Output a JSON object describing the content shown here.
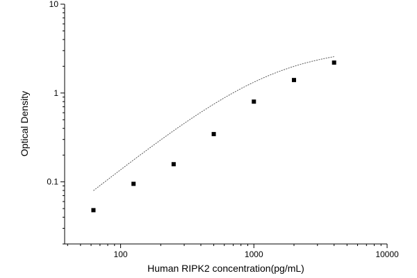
{
  "chart_data": {
    "type": "scatter",
    "title": "",
    "xlabel": "Human RIPK2 concentration(pg/mL)",
    "ylabel": "Optical Density",
    "xscale": "log",
    "yscale": "log",
    "xlim": [
      38,
      10000
    ],
    "ylim": [
      0.02,
      10
    ],
    "grid": false,
    "legend": "none",
    "x_tick_labels": [
      "100",
      "1000",
      "10000"
    ],
    "y_tick_labels": [
      "10",
      "1",
      "0.1"
    ],
    "x_tick_values": [
      100,
      1000,
      10000
    ],
    "y_tick_values": [
      10,
      1,
      0.1
    ],
    "point_color": "#000000",
    "curve_color": "#444444",
    "series": [
      {
        "x": [
          62.5,
          125,
          250,
          500,
          1000,
          2000,
          4000
        ],
        "y": [
          0.048,
          0.095,
          0.158,
          0.345,
          0.8,
          1.4,
          2.2
        ]
      }
    ],
    "fit_curve": {
      "type": "4PL",
      "bottom": 0.0,
      "top": 3.3,
      "ec50": 1400,
      "hill": 1.19,
      "x_range": [
        62.5,
        4000
      ]
    }
  }
}
